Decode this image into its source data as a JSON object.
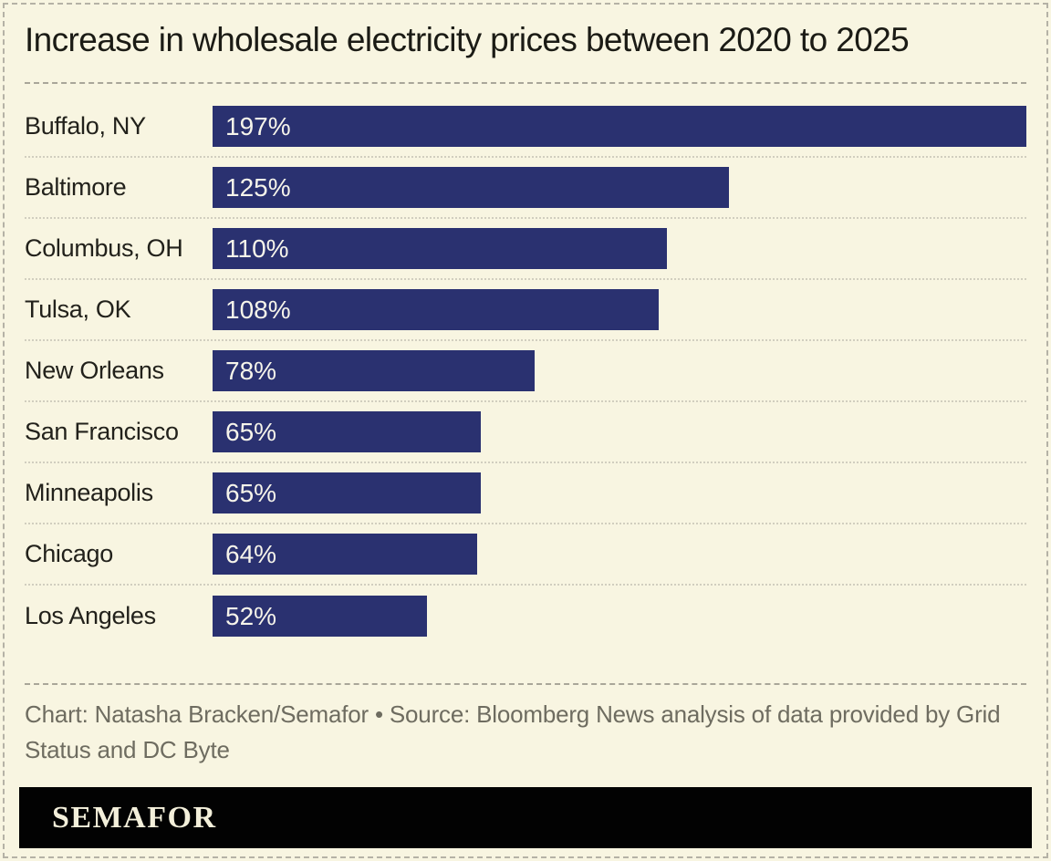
{
  "chart_data": {
    "type": "bar",
    "orientation": "horizontal",
    "title": "Increase in wholesale electricity prices between 2020 to 2025",
    "categories": [
      "Buffalo, NY",
      "Baltimore",
      "Columbus, OH",
      "Tulsa, OK",
      "New Orleans",
      "San Francisco",
      "Minneapolis",
      "Chicago",
      "Los Angeles"
    ],
    "values": [
      197,
      125,
      110,
      108,
      78,
      65,
      65,
      64,
      52
    ],
    "value_labels": [
      "197%",
      "125%",
      "110%",
      "108%",
      "78%",
      "65%",
      "65%",
      "64%",
      "52%"
    ],
    "xlim": [
      0,
      197
    ],
    "grid": false,
    "legend": false,
    "bar_color": "#2a3170",
    "value_label_color": "#f6f4ea"
  },
  "footer": {
    "attribution": "Chart: Natasha Bracken/Semafor • Source: Bloomberg News analysis of data provided by Grid Status and DC Byte",
    "logo_text": "SEMAFOR"
  },
  "colors": {
    "background": "#f8f5e1",
    "bar": "#2a3170",
    "title_text": "#1b1b15",
    "muted_text": "#6e6c60",
    "divider": "#a9a699",
    "row_separator": "#d1cebf",
    "logo_bar_background": "#020202",
    "logo_text": "#f3efda"
  }
}
